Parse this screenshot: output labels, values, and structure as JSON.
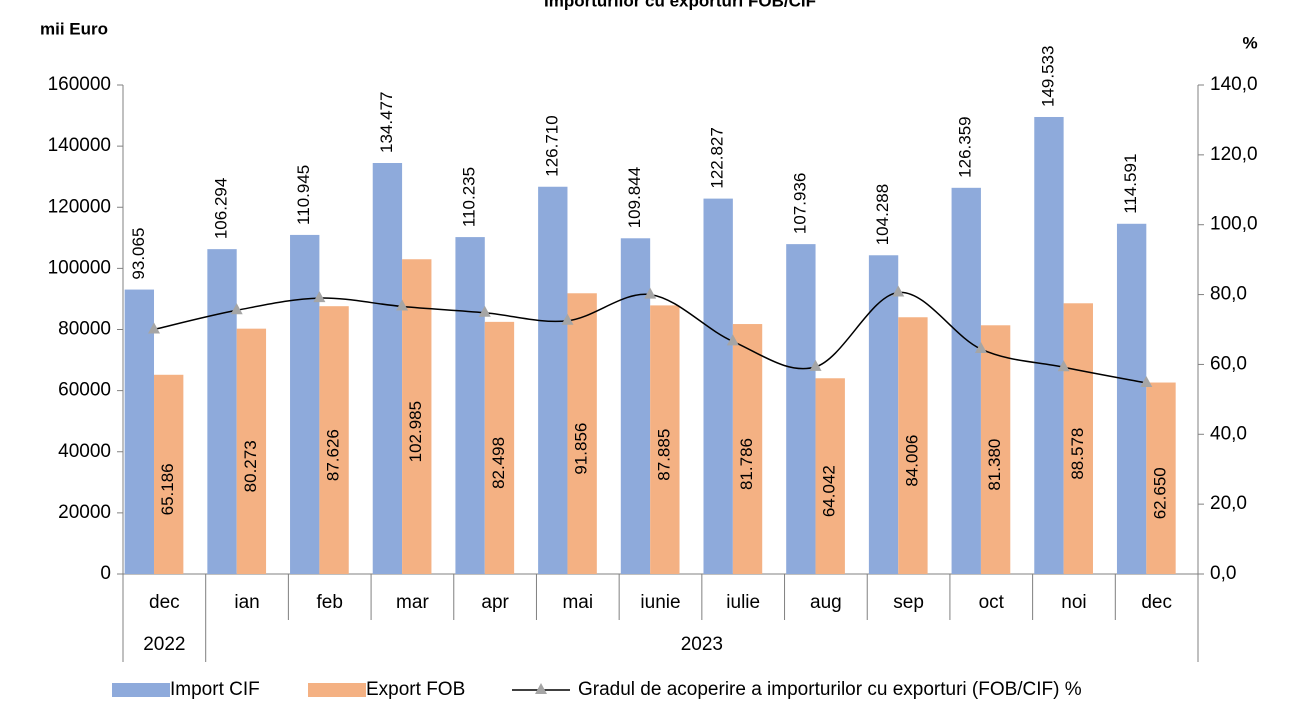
{
  "chart_data": {
    "type": "bar_line",
    "title": "Importurilor cu exporturi FOB/CIF",
    "y_label": "mii Euro",
    "y2_label": "%",
    "categories": [
      "dec",
      "ian",
      "feb",
      "mar",
      "apr",
      "mai",
      "iunie",
      "iulie",
      "aug",
      "sep",
      "oct",
      "noi",
      "dec"
    ],
    "groups": [
      {
        "label": "2022",
        "span": 1
      },
      {
        "label": "2023",
        "span": 12
      }
    ],
    "series": [
      {
        "name": "Import CIF",
        "type": "bar",
        "color": "#8eaadb",
        "values": [
          93065,
          106294,
          110945,
          134477,
          110235,
          126710,
          109844,
          122827,
          107936,
          104288,
          126359,
          149533,
          114591
        ],
        "value_labels": [
          "93.065",
          "106.294",
          "110.945",
          "134.477",
          "110.235",
          "126.710",
          "109.844",
          "122.827",
          "107.936",
          "104.288",
          "126.359",
          "149.533",
          "114.591"
        ]
      },
      {
        "name": "Export FOB",
        "type": "bar",
        "color": "#f4b183",
        "values": [
          65186,
          80273,
          87626,
          102985,
          82498,
          91856,
          87885,
          81786,
          64042,
          84006,
          81380,
          88578,
          62650
        ],
        "value_labels": [
          "65.186",
          "80.273",
          "87.626",
          "102.985",
          "82.498",
          "91.856",
          "87.885",
          "81.786",
          "64.042",
          "84.006",
          "81.380",
          "88.578",
          "62.650"
        ]
      },
      {
        "name": "Gradul de acoperire a importurilor cu exporturi (FOB/CIF) %",
        "type": "line",
        "axis": "y2",
        "color": "#000000",
        "marker_color": "#a5a5a5",
        "values": [
          70.0,
          75.5,
          79.0,
          76.6,
          74.8,
          72.5,
          80.0,
          66.6,
          59.3,
          80.6,
          64.4,
          59.2,
          54.7
        ]
      }
    ],
    "ylim": [
      0,
      160000
    ],
    "yticks": [
      0,
      20000,
      40000,
      60000,
      80000,
      100000,
      120000,
      140000,
      160000
    ],
    "y2lim": [
      0,
      140
    ],
    "y2ticks": [
      {
        "value": 0,
        "label": "0,0"
      },
      {
        "value": 20,
        "label": "20,0"
      },
      {
        "value": 40,
        "label": "40,0"
      },
      {
        "value": 60,
        "label": "60,0"
      },
      {
        "value": 80,
        "label": "80,0"
      },
      {
        "value": 100,
        "label": "100,0"
      },
      {
        "value": 120,
        "label": "120,0"
      },
      {
        "value": 140,
        "label": "140,0"
      }
    ],
    "grid": false,
    "legend": "bottom"
  }
}
